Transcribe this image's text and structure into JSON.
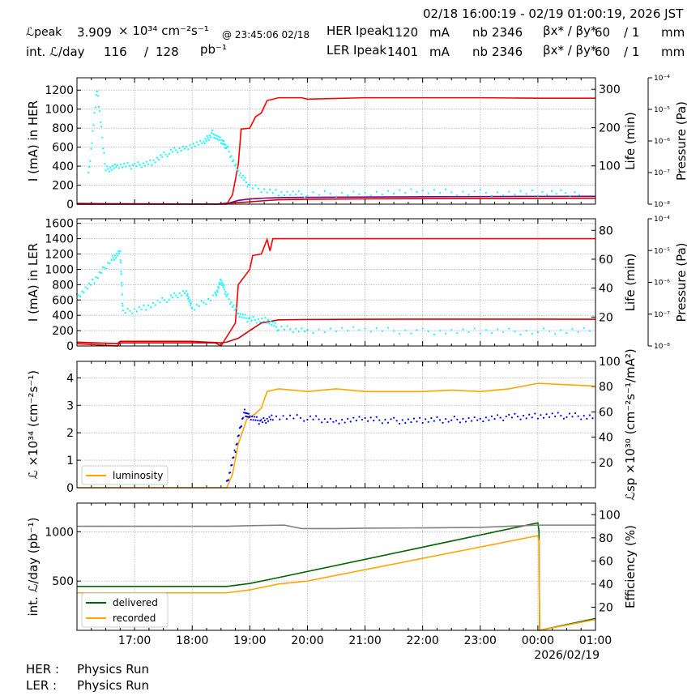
{
  "header": {
    "time_range": "02/18 16:00:19 - 02/19 01:00:19, 2026 JST",
    "lpeak_label": "ℒpeak",
    "lpeak_value": "3.909",
    "lpeak_unit": "× 10³⁴ cm⁻²s⁻¹",
    "lpeak_time": "@ 23:45:06 02/18",
    "intl_label": "int. ℒ/day",
    "intl_value": "116",
    "intl_sep": "/",
    "intl_total": "128",
    "intl_unit": "pb⁻¹",
    "her_label": "HER Ipeak",
    "her_value": "1120",
    "her_unit": "mA",
    "her_nb_label": "nb",
    "her_nb_value": "2346",
    "her_beta_label": "βx* / βy*",
    "her_beta_x": "60",
    "her_beta_y": "/ 1",
    "her_beta_unit": "mm",
    "ler_label": "LER Ipeak",
    "ler_value": "1401",
    "ler_unit": "mA",
    "ler_nb_label": "nb",
    "ler_nb_value": "2346",
    "ler_beta_label": "βx* / βy*",
    "ler_beta_x": "60",
    "ler_beta_y": "/ 1",
    "ler_beta_unit": "mm"
  },
  "footer": {
    "her_label": "HER :",
    "her_status": "Physics Run",
    "ler_label": "LER :",
    "ler_status": "Physics Run"
  },
  "colors": {
    "current": "#ff0000",
    "lifetime_dark": "#cc0000",
    "pressure": "#800080",
    "life_points": "#00ffff",
    "luminosity": "#ffa500",
    "specific": "#0000ff",
    "delivered": "#006400",
    "recorded": "#ffa500",
    "efficiency": "#808080",
    "grid": "#b0b0b0"
  },
  "chart_data": [
    {
      "type": "line",
      "panel": "HER",
      "ylabel": "I (mA) in HER",
      "y2label": "Life (min)",
      "y3label": "Pressure (Pa)",
      "ylim": [
        0,
        1330
      ],
      "y2lim": [
        0,
        330
      ],
      "y3_log_ticks": [
        "10⁻⁴",
        "10⁻⁵",
        "10⁻⁶",
        "10⁻⁷",
        "10⁻⁸"
      ],
      "yticks": [
        0,
        200,
        400,
        600,
        800,
        1000,
        1200
      ],
      "y2ticks": [
        100,
        200,
        300
      ],
      "series": [
        {
          "key": "current",
          "x": [
            16.0,
            18.6,
            18.7,
            18.8,
            18.85,
            19.0,
            19.1,
            19.2,
            19.3,
            19.5,
            19.9,
            20.0,
            21.0,
            22.0,
            23.0,
            24.0,
            25.0
          ],
          "values": [
            0,
            0,
            100,
            420,
            790,
            800,
            920,
            960,
            1090,
            1120,
            1120,
            1105,
            1120,
            1120,
            1120,
            1115,
            1115
          ]
        },
        {
          "key": "lifetime_dark",
          "x": [
            16.0,
            16.5,
            17.0,
            17.5,
            18.0,
            18.35,
            18.4,
            18.6,
            18.9,
            19.2,
            19.5,
            20.0,
            21.0,
            22.0,
            23.0,
            24.0,
            25.0
          ],
          "values": [
            8,
            5,
            4,
            3,
            2,
            1,
            0,
            10,
            20,
            34,
            46,
            52,
            56,
            59,
            60,
            61,
            62
          ]
        },
        {
          "key": "pressure",
          "x": [
            16.0,
            18.5,
            18.6,
            18.8,
            19.0,
            19.3,
            19.6,
            20.0,
            21.0,
            22.0,
            23.0,
            24.0,
            25.0
          ],
          "values": [
            0,
            0,
            5,
            40,
            55,
            65,
            70,
            72,
            75,
            78,
            80,
            82,
            83
          ]
        },
        {
          "key": "life_points",
          "x": [
            16.2,
            16.35,
            16.5,
            16.7,
            17.0,
            17.3,
            17.6,
            17.9,
            18.2,
            18.35,
            18.5,
            18.6,
            18.8,
            19.0,
            19.5,
            20.0,
            21.0,
            22.0,
            23.0,
            24.0,
            24.8
          ],
          "values": [
            75,
            300,
            90,
            100,
            100,
            110,
            135,
            150,
            160,
            185,
            165,
            150,
            85,
            45,
            30,
            25,
            30,
            32,
            30,
            28,
            30
          ]
        }
      ]
    },
    {
      "type": "line",
      "panel": "LER",
      "ylabel": "I (mA) in LER",
      "y2label": "Life (min)",
      "y3label": "Pressure (Pa)",
      "ylim": [
        0,
        1660
      ],
      "y2lim": [
        0,
        88
      ],
      "y3_log_ticks": [
        "10⁻⁴",
        "10⁻⁵",
        "10⁻⁶",
        "10⁻⁷",
        "10⁻⁸"
      ],
      "yticks": [
        0,
        200,
        400,
        600,
        800,
        1000,
        1200,
        1400,
        1600
      ],
      "y2ticks": [
        20,
        40,
        60,
        80
      ],
      "series": [
        {
          "key": "current",
          "x": [
            16.0,
            16.7,
            16.75,
            18.4,
            18.5,
            18.75,
            18.8,
            19.0,
            19.05,
            19.2,
            19.3,
            19.35,
            19.4,
            20.0,
            21.0,
            22.0,
            23.0,
            24.0,
            25.0
          ],
          "values": [
            30,
            0,
            40,
            40,
            0,
            300,
            800,
            1000,
            1180,
            1200,
            1390,
            1240,
            1400,
            1400,
            1400,
            1400,
            1400,
            1400,
            1400
          ]
        },
        {
          "key": "lifetime_dark",
          "x": [
            16.0,
            16.7,
            16.75,
            18.0,
            18.5,
            18.6,
            18.8,
            19.0,
            19.2,
            19.5,
            20.0,
            21.0,
            22.0,
            23.0,
            24.0,
            25.0
          ],
          "values": [
            50,
            30,
            60,
            60,
            40,
            50,
            100,
            200,
            300,
            340,
            345,
            348,
            350,
            350,
            350,
            348
          ]
        },
        {
          "key": "life_points",
          "x": [
            16.0,
            16.3,
            16.6,
            16.75,
            16.8,
            17.2,
            17.6,
            17.9,
            18.0,
            18.4,
            18.5,
            18.6,
            18.8,
            19.0,
            19.3,
            19.5,
            20.0,
            21.0,
            22.0,
            23.0,
            24.0,
            25.0
          ],
          "values": [
            34,
            45,
            60,
            65,
            23,
            27,
            33,
            38,
            25,
            35,
            45,
            35,
            22,
            18,
            18,
            12,
            11,
            11,
            10,
            10,
            10,
            11
          ]
        }
      ]
    },
    {
      "type": "line",
      "panel": "Luminosity",
      "ylabel": "ℒ ×10³⁴ (cm⁻²s⁻¹)",
      "y2label": "ℒsp ×10³⁰ (cm⁻²s⁻¹/mA²)",
      "ylim": [
        0,
        4.6
      ],
      "y2lim": [
        0,
        100
      ],
      "yticks": [
        0,
        1,
        2,
        3,
        4
      ],
      "y2ticks": [
        20,
        40,
        60,
        80,
        100
      ],
      "legend": [
        "luminosity"
      ],
      "series": [
        {
          "key": "luminosity",
          "name": "luminosity",
          "x": [
            16.0,
            18.6,
            18.7,
            18.8,
            18.95,
            19.1,
            19.2,
            19.3,
            19.5,
            20.0,
            20.5,
            21.0,
            21.5,
            22.0,
            22.5,
            23.0,
            23.5,
            24.0,
            24.5,
            25.0
          ],
          "values": [
            0,
            0,
            0.5,
            1.6,
            2.5,
            2.7,
            2.9,
            3.5,
            3.6,
            3.5,
            3.6,
            3.5,
            3.5,
            3.5,
            3.55,
            3.5,
            3.6,
            3.8,
            3.75,
            3.7
          ]
        },
        {
          "key": "specific",
          "x": [
            18.6,
            18.75,
            18.9,
            19.0,
            19.2,
            19.4,
            20.0,
            20.5,
            21.0,
            21.5,
            22.0,
            22.5,
            23.0,
            23.5,
            24.0,
            24.5,
            25.0
          ],
          "values": [
            3,
            30,
            60,
            56,
            52,
            56,
            55,
            53,
            54,
            53,
            53,
            54,
            54,
            56,
            57,
            57,
            56
          ]
        }
      ]
    },
    {
      "type": "line",
      "panel": "Integrated",
      "ylabel": "int. ℒ/day (pb⁻¹)",
      "y2label": "Efficiency (%)",
      "ylim": [
        0,
        1290
      ],
      "y2lim": [
        0,
        110
      ],
      "yticks": [
        500,
        1000
      ],
      "y2ticks": [
        20,
        40,
        60,
        80,
        100
      ],
      "xticks": [
        "17:00",
        "18:00",
        "19:00",
        "20:00",
        "21:00",
        "22:00",
        "23:00",
        "00:00",
        "01:00"
      ],
      "xdate": "2026/02/19",
      "legend": [
        "delivered",
        "recorded"
      ],
      "series": [
        {
          "key": "delivered",
          "name": "delivered",
          "x": [
            16.0,
            18.6,
            19.0,
            19.5,
            24.0,
            24.02,
            24.03,
            25.0
          ],
          "values": [
            445,
            445,
            475,
            535,
            1090,
            1000,
            0,
            120
          ]
        },
        {
          "key": "recorded",
          "name": "recorded",
          "x": [
            16.0,
            18.6,
            19.0,
            19.5,
            20.0,
            24.0,
            24.02,
            24.03,
            25.0
          ],
          "values": [
            380,
            380,
            410,
            470,
            500,
            960,
            900,
            0,
            110
          ]
        },
        {
          "key": "efficiency",
          "x": [
            16.0,
            18.6,
            19.0,
            19.6,
            19.9,
            20.5,
            21.0,
            22.0,
            23.0,
            24.0,
            25.0
          ],
          "values": [
            90,
            90,
            90.5,
            91,
            88,
            88,
            88.3,
            88.6,
            89,
            91,
            91
          ]
        }
      ]
    }
  ]
}
